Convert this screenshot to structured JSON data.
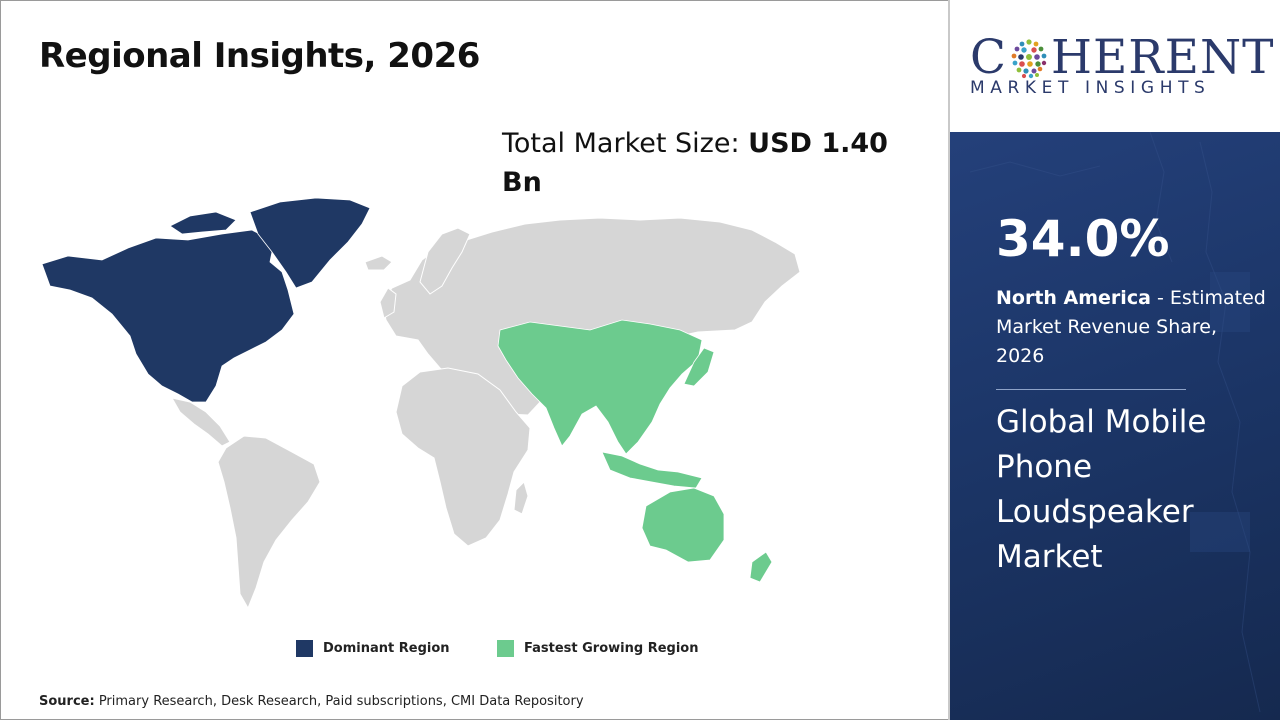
{
  "title": "Regional Insights, 2026",
  "market_size": {
    "label": "Total Market Size: ",
    "value": "USD 1.40 Bn"
  },
  "legend": [
    {
      "label": "Dominant Region",
      "color": "#1f3864"
    },
    {
      "label": "Fastest Growing Region",
      "color": "#6ccb8e"
    }
  ],
  "map_colors": {
    "base": "#d6d6d6",
    "dominant": "#1f3864",
    "fastest": "#6ccb8e",
    "border": "#ffffff"
  },
  "regions": [
    {
      "name": "North America",
      "role": "dominant"
    },
    {
      "name": "Asia Pacific",
      "role": "fastest"
    }
  ],
  "source": {
    "label": "Source:",
    "text": " Primary Research, Desk Research, Paid subscriptions, CMI Data Repository"
  },
  "logo": {
    "main_before": "C",
    "main_after": "HERENT",
    "sub": "MARKET INSIGHTS"
  },
  "highlight": {
    "share": "34.0%",
    "region": "North America",
    "description": " - Estimated Market Revenue Share, 2026",
    "market_name": "Global Mobile Phone Loudspeaker Market"
  },
  "panel_color": "#1f3864"
}
